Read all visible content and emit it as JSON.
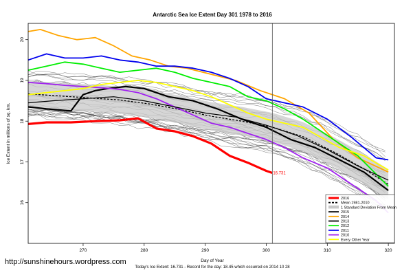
{
  "chart_data": {
    "type": "line",
    "title": "Antarctic Sea Ice Extent Day 301 1978 to 2016",
    "xlabel": "Day of Year",
    "ylabel": "Ice Extent in millions of sq. km.",
    "xlim": [
      261,
      321
    ],
    "ylim": [
      15,
      20.4
    ],
    "x_ticks": [
      270,
      280,
      290,
      300,
      310,
      320
    ],
    "y_ticks": [
      16,
      17,
      18,
      19,
      20
    ],
    "vline_x": 301,
    "grid": false,
    "legend_position": "bottom-right",
    "legend": [
      {
        "label": "2016",
        "color": "#ff0000",
        "style": "thick"
      },
      {
        "label": "Mean 1981-2010",
        "color": "#000000",
        "style": "dashed"
      },
      {
        "label": "1 Standard Deviation From Mean",
        "color": "#c8c8c8",
        "style": "band"
      },
      {
        "label": "2015",
        "color": "#000000",
        "style": "solid"
      },
      {
        "label": "2014",
        "color": "#ffa500",
        "style": "solid"
      },
      {
        "label": "2013",
        "color": "#000000",
        "style": "solid"
      },
      {
        "label": "2012",
        "color": "#00ee00",
        "style": "solid"
      },
      {
        "label": "2011",
        "color": "#0000ee",
        "style": "solid"
      },
      {
        "label": "2010",
        "color": "#a020f0",
        "style": "solid"
      },
      {
        "label": "Every Other Year",
        "color": "#ffff00",
        "style": "solid"
      }
    ],
    "annotation": {
      "text": "16.731",
      "x": 301,
      "y": 16.73
    },
    "series": [
      {
        "color": "#ff0000",
        "width": 3.2,
        "x": [
          261,
          264,
          268,
          272,
          276,
          279,
          282,
          285,
          288,
          291,
          294,
          297,
          300,
          301
        ],
        "y": [
          17.93,
          17.97,
          17.97,
          18.0,
          18.02,
          18.07,
          17.82,
          17.75,
          17.63,
          17.45,
          17.15,
          16.98,
          16.78,
          16.73
        ]
      },
      {
        "color": "#000000",
        "width": 1.3,
        "dash": "3,2",
        "x": [
          261,
          266,
          271,
          276,
          281,
          286,
          291,
          296,
          301,
          306,
          311,
          316,
          320
        ],
        "y": [
          18.67,
          18.62,
          18.57,
          18.52,
          18.42,
          18.28,
          18.12,
          18.0,
          17.85,
          17.62,
          17.25,
          16.83,
          16.45
        ]
      },
      {
        "color": "#000000",
        "width": 2.2,
        "x": [
          261,
          264,
          268,
          270,
          272,
          274,
          277,
          280,
          284,
          288,
          292,
          296,
          300,
          304,
          308,
          312,
          316,
          320
        ],
        "y": [
          18.35,
          18.3,
          18.25,
          18.65,
          18.75,
          18.8,
          18.85,
          18.8,
          18.6,
          18.5,
          18.3,
          18.05,
          17.85,
          17.55,
          17.35,
          17.05,
          16.75,
          16.3
        ]
      },
      {
        "color": "#ffa500",
        "width": 1.8,
        "x": [
          261,
          263,
          266,
          269,
          272,
          275,
          278,
          281,
          284,
          287,
          291,
          295,
          299,
          303,
          307,
          311,
          315,
          320
        ],
        "y": [
          20.2,
          20.25,
          20.1,
          20.0,
          20.05,
          19.85,
          19.6,
          19.5,
          19.35,
          19.3,
          19.15,
          19.0,
          18.75,
          18.55,
          18.2,
          17.55,
          17.1,
          16.75
        ]
      },
      {
        "color": "#00ee00",
        "width": 1.8,
        "x": [
          261,
          264,
          267,
          270,
          273,
          276,
          279,
          282,
          285,
          288,
          291,
          294,
          297,
          300,
          303,
          306,
          310,
          315,
          320
        ],
        "y": [
          19.25,
          19.35,
          19.45,
          19.4,
          19.3,
          19.2,
          19.25,
          19.3,
          19.2,
          19.05,
          18.95,
          18.85,
          18.6,
          18.5,
          18.3,
          18.05,
          17.65,
          17.15,
          16.4
        ]
      },
      {
        "color": "#0000ee",
        "width": 1.8,
        "x": [
          261,
          264,
          267,
          270,
          273,
          276,
          279,
          282,
          285,
          288,
          291,
          294,
          297,
          300,
          303,
          306,
          310,
          314,
          318,
          320
        ],
        "y": [
          19.5,
          19.65,
          19.55,
          19.55,
          19.6,
          19.5,
          19.45,
          19.35,
          19.35,
          19.3,
          19.2,
          19.05,
          18.85,
          18.55,
          18.45,
          18.35,
          18.05,
          17.6,
          17.1,
          17.05
        ]
      },
      {
        "color": "#a020f0",
        "width": 1.8,
        "x": [
          261,
          264,
          267,
          270,
          273,
          276,
          279,
          282,
          285,
          288,
          291,
          294,
          297,
          300,
          303,
          306,
          310,
          314,
          318,
          320
        ],
        "y": [
          18.95,
          18.92,
          18.88,
          18.85,
          18.82,
          18.78,
          18.7,
          18.55,
          18.35,
          18.15,
          17.95,
          17.85,
          17.7,
          17.55,
          17.35,
          17.1,
          16.85,
          16.45,
          16.05,
          15.75
        ]
      },
      {
        "color": "#ffff00",
        "width": 1.8,
        "x": [
          261,
          264,
          267,
          270,
          273,
          276,
          279,
          282,
          285,
          288,
          291,
          294,
          297,
          300,
          303,
          306,
          309,
          312,
          316,
          320
        ],
        "y": [
          18.65,
          18.7,
          18.75,
          18.8,
          18.9,
          18.95,
          19.0,
          18.95,
          18.85,
          18.75,
          18.6,
          18.4,
          18.2,
          18.05,
          17.95,
          17.85,
          17.6,
          17.35,
          17.15,
          16.8
        ]
      },
      {
        "color": "#000000",
        "width": 1.2,
        "x": [
          261,
          265,
          270,
          275,
          280,
          285,
          290,
          295,
          300,
          305,
          310,
          315,
          320
        ],
        "y": [
          18.45,
          18.5,
          18.55,
          18.6,
          18.5,
          18.35,
          18.2,
          18.1,
          17.9,
          17.65,
          17.3,
          16.9,
          16.55
        ]
      }
    ]
  },
  "watermark_url": "http://sunshinehours.wordpress.com",
  "footer_text": "Today's Ice Extent: 16.731 - Record for the day: 18.45 which occurred on 2014 10 28"
}
